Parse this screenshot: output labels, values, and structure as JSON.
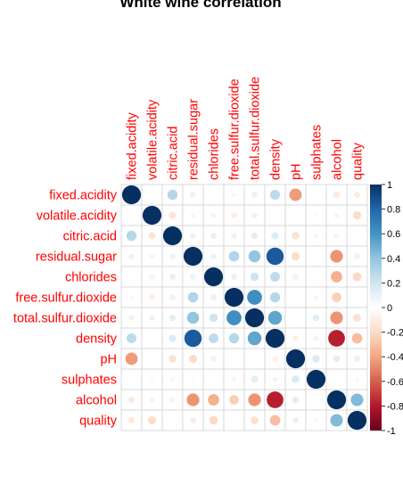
{
  "chart_data": {
    "type": "heatmap",
    "title": "White wine correlation",
    "variables": [
      "fixed.acidity",
      "volatile.acidity",
      "citric.acid",
      "residual.sugar",
      "chlorides",
      "free.sulfur.dioxide",
      "total.sulfur.dioxide",
      "density",
      "pH",
      "sulphates",
      "alcohol",
      "quality"
    ],
    "matrix": [
      [
        1.0,
        -0.02,
        0.29,
        0.09,
        0.02,
        -0.05,
        0.09,
        0.27,
        -0.43,
        -0.02,
        -0.12,
        -0.11
      ],
      [
        -0.02,
        1.0,
        -0.15,
        0.06,
        0.07,
        -0.1,
        0.09,
        0.03,
        -0.03,
        -0.04,
        0.07,
        -0.19
      ],
      [
        0.29,
        -0.15,
        1.0,
        0.09,
        0.11,
        0.09,
        0.12,
        0.15,
        -0.16,
        0.06,
        -0.08,
        -0.01
      ],
      [
        0.09,
        0.06,
        0.09,
        1.0,
        0.09,
        0.3,
        0.4,
        0.84,
        -0.19,
        -0.03,
        -0.45,
        -0.1
      ],
      [
        0.02,
        0.07,
        0.11,
        0.09,
        1.0,
        0.1,
        0.2,
        0.26,
        -0.09,
        0.02,
        -0.36,
        -0.21
      ],
      [
        -0.05,
        -0.1,
        0.09,
        0.3,
        0.1,
        1.0,
        0.62,
        0.29,
        0.0,
        0.06,
        -0.25,
        0.01
      ],
      [
        0.09,
        0.09,
        0.12,
        0.4,
        0.2,
        0.62,
        1.0,
        0.53,
        0.0,
        0.13,
        -0.45,
        -0.17
      ],
      [
        0.27,
        0.03,
        0.15,
        0.84,
        0.26,
        0.29,
        0.53,
        1.0,
        -0.09,
        0.07,
        -0.78,
        -0.31
      ],
      [
        -0.43,
        -0.03,
        -0.16,
        -0.19,
        -0.09,
        0.0,
        0.0,
        -0.09,
        1.0,
        0.16,
        0.12,
        0.1
      ],
      [
        -0.02,
        -0.04,
        0.06,
        -0.03,
        0.02,
        0.06,
        0.13,
        0.07,
        0.16,
        1.0,
        -0.02,
        0.05
      ],
      [
        -0.12,
        0.07,
        -0.08,
        -0.45,
        -0.36,
        -0.25,
        -0.45,
        -0.78,
        0.12,
        -0.02,
        1.0,
        0.44
      ],
      [
        -0.11,
        -0.19,
        -0.01,
        -0.1,
        -0.21,
        0.01,
        -0.17,
        -0.31,
        0.1,
        0.05,
        0.44,
        1.0
      ]
    ],
    "color_scale": {
      "min": -1,
      "max": 1,
      "ticks": [
        "1",
        "0.8",
        "0.6",
        "0.4",
        "0.2",
        "0",
        "-0.2",
        "-0.4",
        "-0.6",
        "-0.8",
        "-1"
      ],
      "stops": [
        "#67001F",
        "#B2182B",
        "#D6604D",
        "#F4A582",
        "#FDDBC7",
        "#FFFFFF",
        "#D1E5F0",
        "#92C5DE",
        "#4393C3",
        "#2166AC",
        "#053061"
      ]
    },
    "label_color": "#FF0000",
    "grid": true,
    "legend_position": "right"
  }
}
